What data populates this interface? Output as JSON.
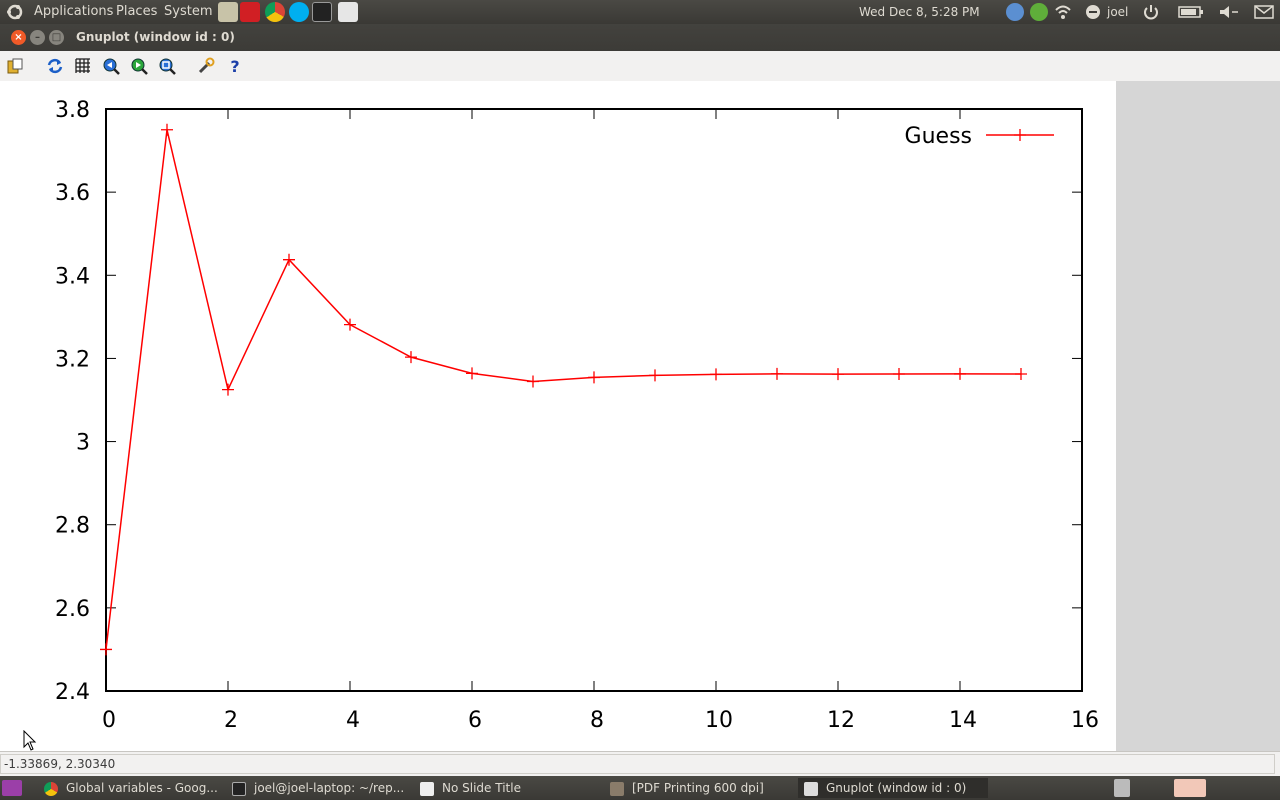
{
  "top_panel": {
    "menus": [
      "Applications",
      "Places",
      "System"
    ],
    "clock": "Wed Dec  8,  5:28 PM",
    "user": "joel"
  },
  "window": {
    "title": "Gnuplot (window id : 0)"
  },
  "toolbar": {
    "buttons": [
      "copy-to-clipboard",
      "replot",
      "grid",
      "zoom-previous",
      "zoom-next",
      "unzoom",
      "settings",
      "help"
    ]
  },
  "chart_data": {
    "type": "line",
    "x": [
      0,
      1,
      2,
      3,
      4,
      5,
      6,
      7,
      8,
      9,
      10,
      11,
      12,
      13,
      14,
      15
    ],
    "series": [
      {
        "name": "Guess",
        "color": "#ff0000",
        "values": [
          2.5,
          3.75,
          3.125,
          3.4375,
          3.2813,
          3.2031,
          3.1641,
          3.1445,
          3.1543,
          3.1592,
          3.1616,
          3.1628,
          3.1622,
          3.1625,
          3.1627,
          3.1626
        ]
      }
    ],
    "xlim": [
      0,
      16
    ],
    "ylim": [
      2.4,
      3.8
    ],
    "xticks": [
      "0",
      "2",
      "4",
      "6",
      "8",
      "10",
      "12",
      "14",
      "16"
    ],
    "yticks": [
      "2.4",
      "2.6",
      "2.8",
      "3",
      "3.2",
      "3.4",
      "3.6",
      "3.8"
    ],
    "legend": "top-right",
    "grid": false
  },
  "statusbar": {
    "coords": "-1.33869,  2.30340"
  },
  "taskbar": {
    "items": [
      {
        "label": "Global variables - Goog..."
      },
      {
        "label": "joel@joel-laptop: ~/rep..."
      },
      {
        "label": "No Slide Title"
      },
      {
        "label": "[PDF Printing 600 dpi]"
      },
      {
        "label": "Gnuplot (window id : 0)"
      }
    ]
  }
}
